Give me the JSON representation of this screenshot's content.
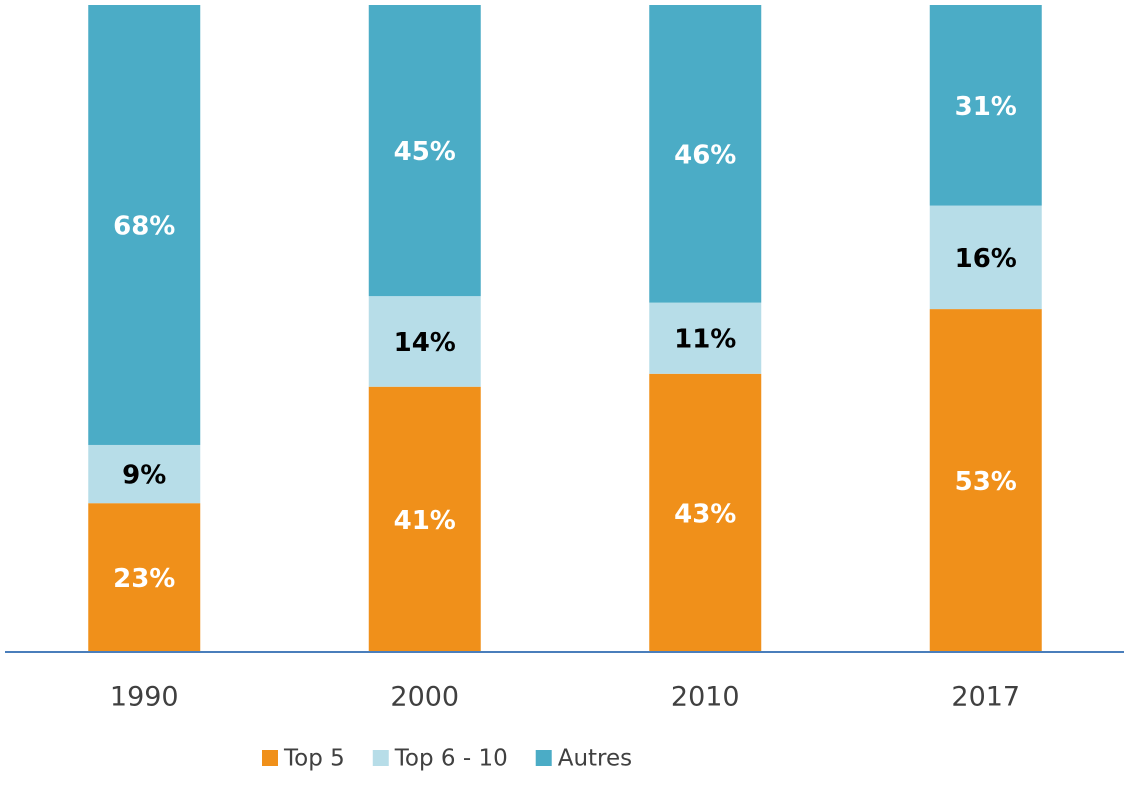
{
  "chart_data": {
    "type": "stacked_bar",
    "categories": [
      "1990",
      "2000",
      "2010",
      "2017"
    ],
    "series": [
      {
        "name": "Top 5",
        "color": "#f0901a",
        "label_color": "#ffffff",
        "values": [
          23,
          41,
          43,
          53
        ],
        "value_labels": [
          "23%",
          "41%",
          "43%",
          "53%"
        ]
      },
      {
        "name": "Top 6 - 10",
        "color": "#b7dde8",
        "label_color": "#000000",
        "values": [
          9,
          14,
          11,
          16
        ],
        "value_labels": [
          "9%",
          "14%",
          "11%",
          "16%"
        ]
      },
      {
        "name": "Autres",
        "color": "#4bacc6",
        "label_color": "#ffffff",
        "values": [
          68,
          45,
          46,
          31
        ],
        "value_labels": [
          "68%",
          "45%",
          "46%",
          "31%"
        ]
      }
    ],
    "ylim": [
      0,
      100
    ],
    "legend": "bottom"
  }
}
